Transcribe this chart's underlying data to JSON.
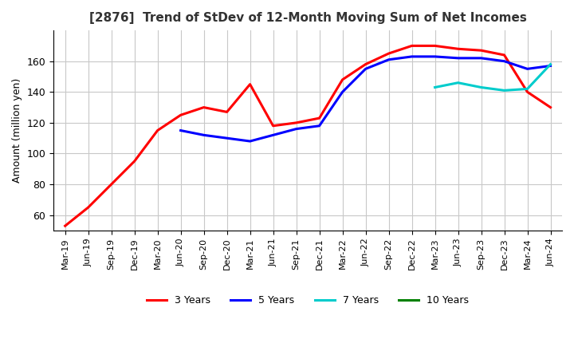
{
  "title": "[2876]  Trend of StDev of 12-Month Moving Sum of Net Incomes",
  "ylabel": "Amount (million yen)",
  "ylim": [
    50,
    180
  ],
  "yticks": [
    60,
    80,
    100,
    120,
    140,
    160
  ],
  "line_colors": {
    "3yr": "#ff0000",
    "5yr": "#0000ff",
    "7yr": "#00cccc",
    "10yr": "#008000"
  },
  "legend": [
    "3 Years",
    "5 Years",
    "7 Years",
    "10 Years"
  ],
  "xtick_labels": [
    "Mar-19",
    "Jun-19",
    "Sep-19",
    "Dec-19",
    "Mar-20",
    "Jun-20",
    "Sep-20",
    "Dec-20",
    "Mar-21",
    "Jun-21",
    "Sep-21",
    "Dec-21",
    "Mar-22",
    "Jun-22",
    "Sep-22",
    "Dec-22",
    "Mar-23",
    "Jun-23",
    "Sep-23",
    "Dec-23",
    "Mar-24",
    "Jun-24"
  ],
  "data_3yr": [
    53,
    65,
    80,
    95,
    115,
    125,
    130,
    127,
    145,
    118,
    120,
    123,
    148,
    158,
    165,
    170,
    170,
    168,
    167,
    164,
    140,
    130
  ],
  "data_5yr": [
    null,
    null,
    null,
    null,
    null,
    115,
    112,
    110,
    108,
    112,
    116,
    118,
    140,
    155,
    161,
    163,
    163,
    162,
    162,
    160,
    155,
    157
  ],
  "data_7yr": [
    null,
    null,
    null,
    null,
    null,
    null,
    null,
    null,
    null,
    null,
    null,
    null,
    null,
    null,
    null,
    null,
    143,
    146,
    143,
    141,
    142,
    158
  ],
  "data_10yr": [
    null,
    null,
    null,
    null,
    null,
    null,
    null,
    null,
    null,
    null,
    null,
    null,
    null,
    null,
    null,
    null,
    null,
    null,
    null,
    null,
    null,
    null
  ],
  "background_color": "#ffffff",
  "grid_color": "#c8c8c8"
}
